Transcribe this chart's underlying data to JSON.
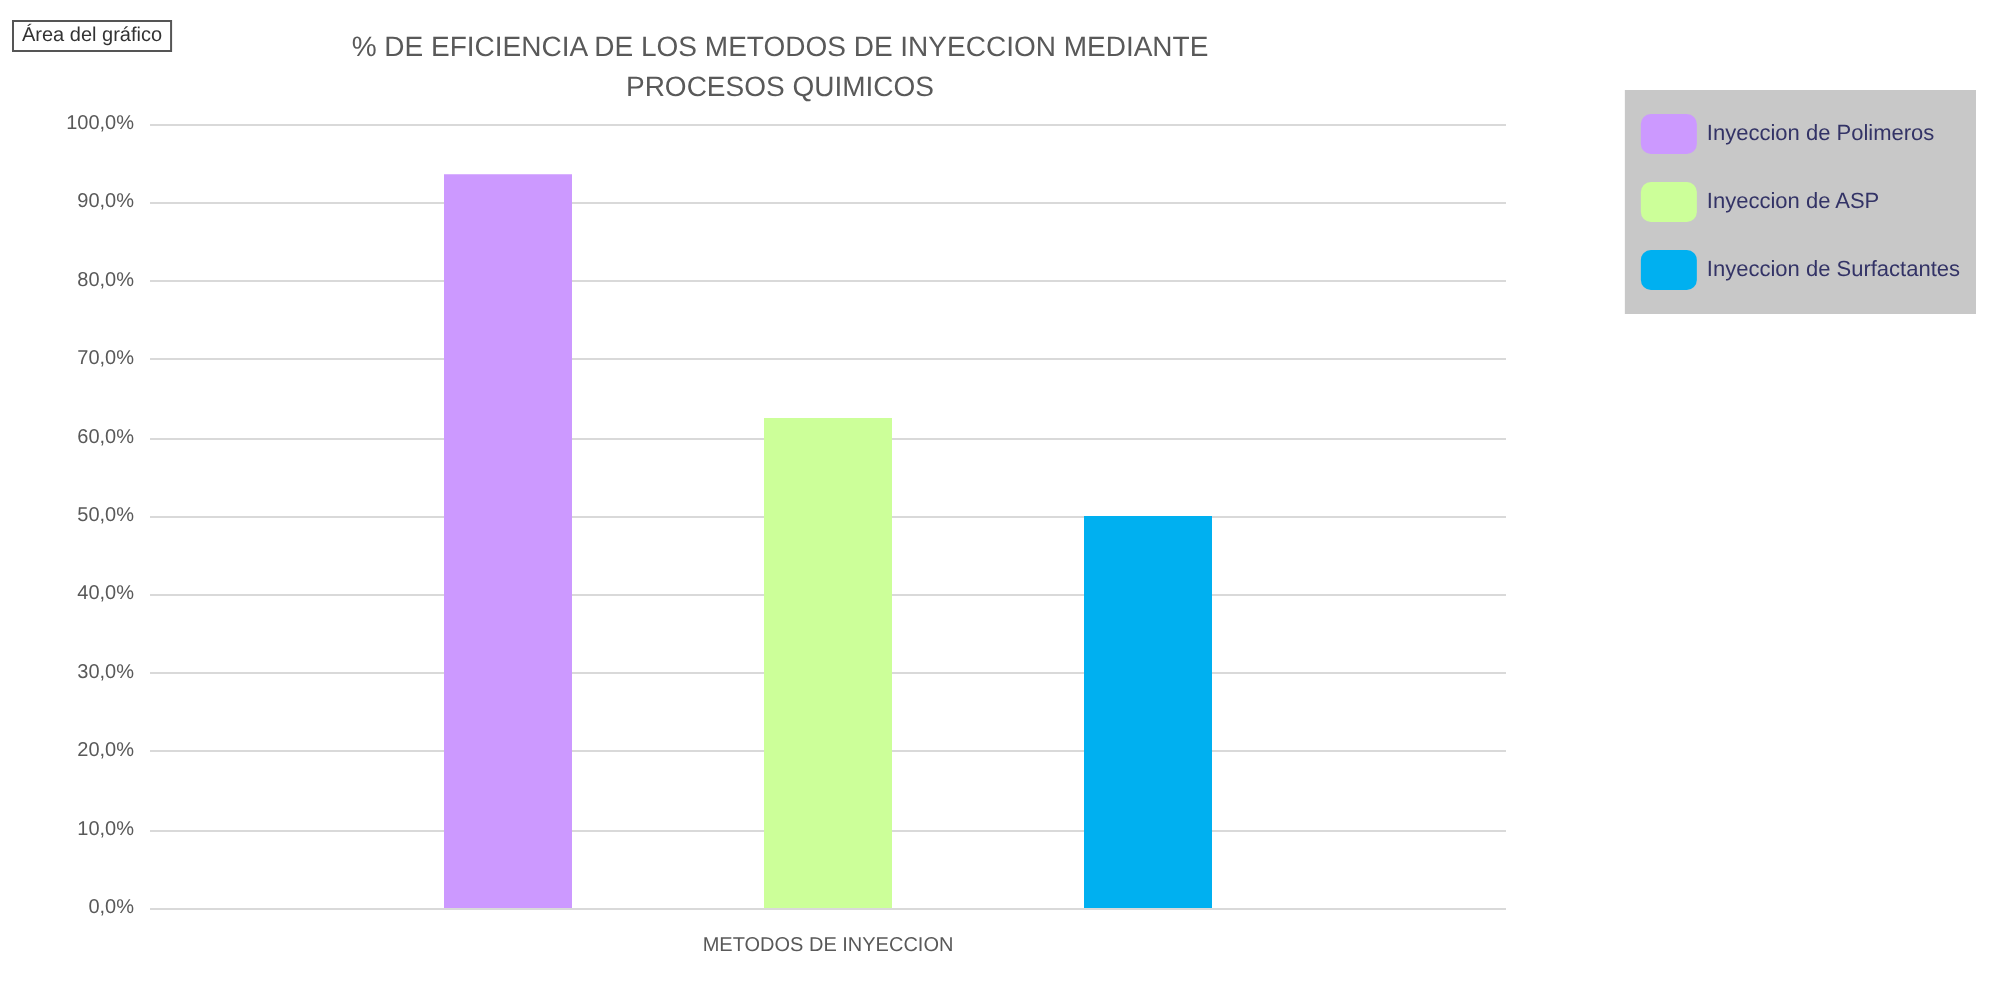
{
  "chart_data": {
    "type": "bar",
    "title": "% DE EFICIENCIA DE LOS METODOS DE INYECCION MEDIANTE\nPROCESOS QUIMICOS",
    "xlabel": "METODOS DE INYECCION",
    "annotations": [
      "Área del gráfico"
    ],
    "categories": [
      null
    ],
    "series": [
      {
        "name": "Inyeccion de Polimeros",
        "color": "#cc99ff",
        "values": [
          93.6
        ]
      },
      {
        "name": "Inyeccion de ASP",
        "color": "#ccff99",
        "values": [
          62.5
        ]
      },
      {
        "name": "Inyeccion de Surfactantes",
        "color": "#00b0f0",
        "values": [
          50
        ]
      }
    ],
    "ylim": [
      0,
      100
    ],
    "yticks": [
      {
        "value": 0,
        "label": "0,0%"
      },
      {
        "value": 10,
        "label": "10,0%"
      },
      {
        "value": 20,
        "label": "20,0%"
      },
      {
        "value": 30,
        "label": "30,0%"
      },
      {
        "value": 40,
        "label": "40,0%"
      },
      {
        "value": 50,
        "label": "50,0%"
      },
      {
        "value": 60,
        "label": "60,0%"
      },
      {
        "value": 70,
        "label": "70,0%"
      },
      {
        "value": 80,
        "label": "80,0%"
      },
      {
        "value": 90,
        "label": "90,0%"
      },
      {
        "value": 100,
        "label": "100,0%"
      }
    ],
    "grid": "y",
    "legend": "right"
  }
}
